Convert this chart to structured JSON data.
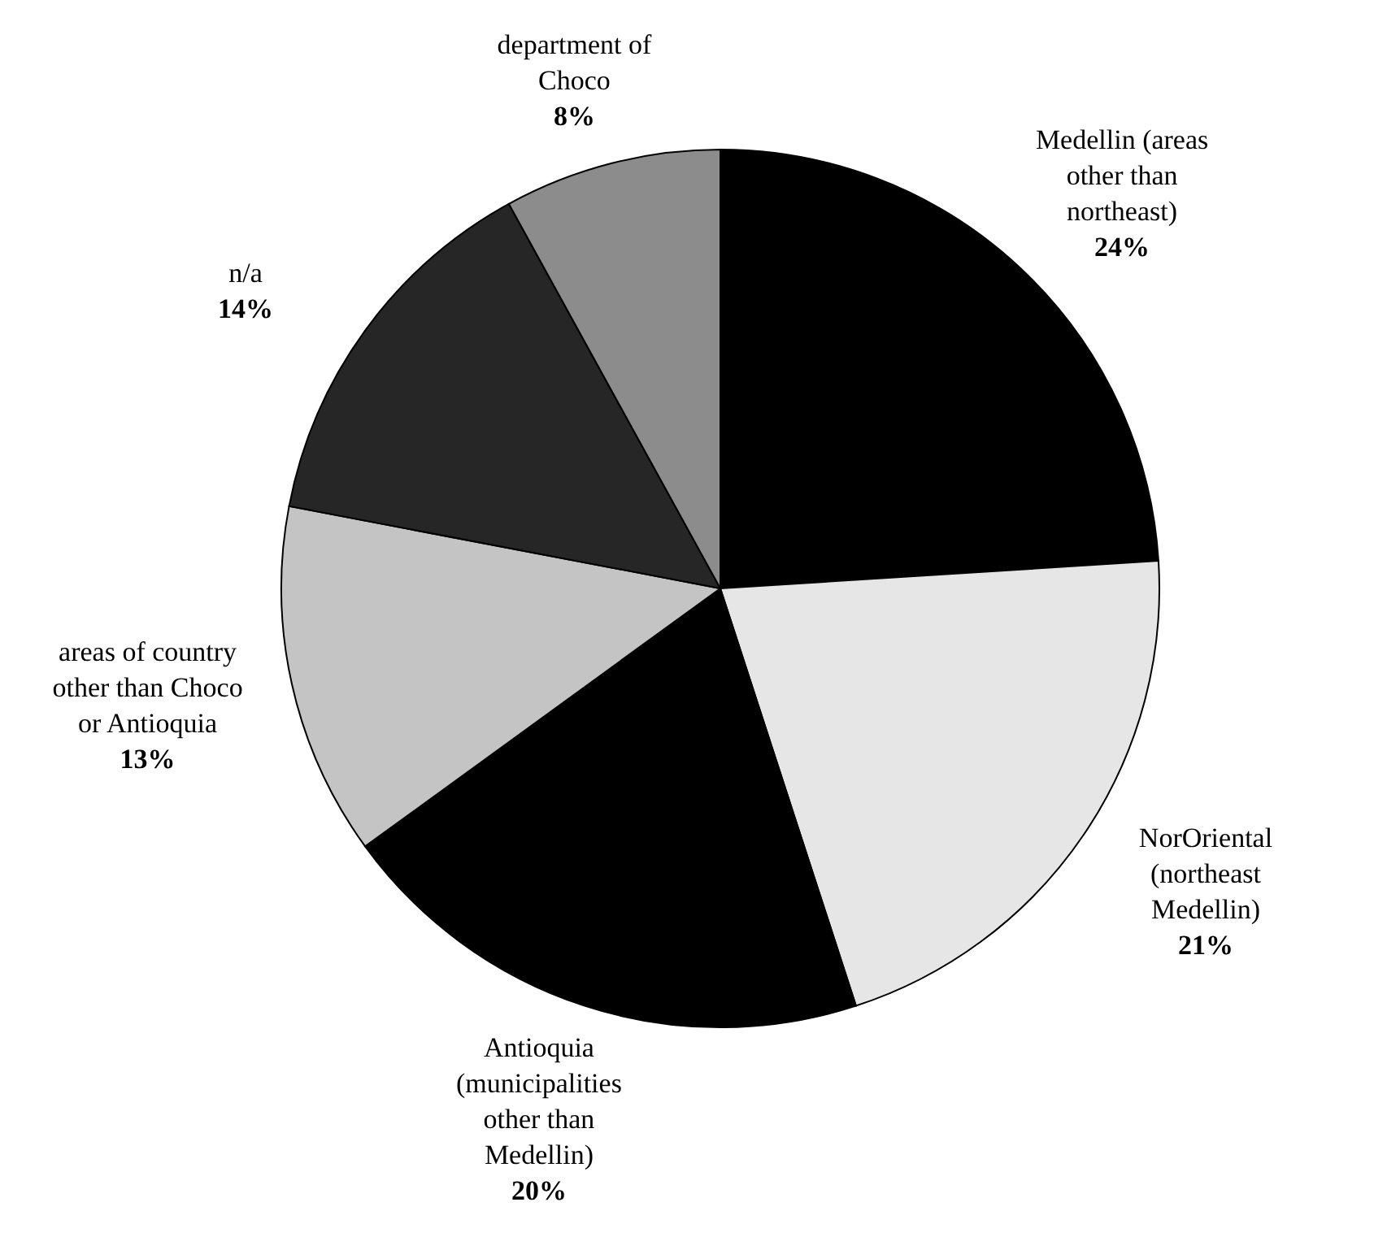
{
  "chart_data": {
    "type": "pie",
    "categories": [
      "Medellin (areas other than northeast)",
      "NorOriental (northeast Medellin)",
      "Antioquia (municipalities other than Medellin)",
      "areas of country other than Choco or Antioquia",
      "n/a",
      "department of Choco"
    ],
    "values": [
      24,
      21,
      20,
      13,
      14,
      8
    ],
    "value_labels": [
      "24%",
      "21%",
      "20%",
      "13%",
      "14%",
      "8%"
    ],
    "colors": [
      "#000000",
      "#e6e6e6",
      "#000000",
      "#c4c4c4",
      "#262626",
      "#8c8c8c"
    ]
  }
}
